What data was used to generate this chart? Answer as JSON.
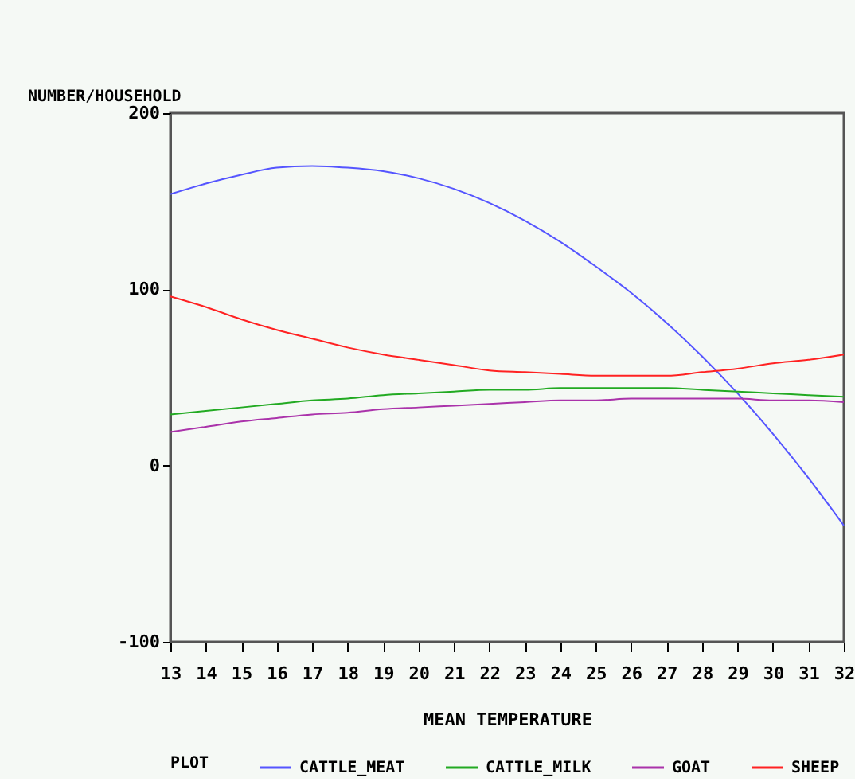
{
  "chart_data": {
    "type": "line",
    "xlabel": "MEAN TEMPERATURE",
    "ylabel": "NUMBER/HOUSEHOLD",
    "legend_title": "PLOT",
    "legend": "bottom",
    "grid": false,
    "x": [
      13,
      14,
      15,
      16,
      17,
      18,
      19,
      20,
      21,
      22,
      23,
      24,
      25,
      26,
      27,
      28,
      29,
      30,
      31,
      32
    ],
    "xlim": [
      13,
      32
    ],
    "xticks": [
      13,
      14,
      15,
      16,
      17,
      18,
      19,
      20,
      21,
      22,
      23,
      24,
      25,
      26,
      27,
      28,
      29,
      30,
      31,
      32
    ],
    "ylim": [
      -100,
      200
    ],
    "yticks": [
      -100,
      0,
      100,
      200
    ],
    "series": [
      {
        "name": "CATTLE_MEAT",
        "color": "#5555ff",
        "values": [
          154,
          160,
          165,
          169,
          170,
          169,
          167,
          163,
          157,
          149,
          139,
          127,
          113,
          98,
          81,
          62,
          41,
          18,
          -7,
          -34
        ]
      },
      {
        "name": "CATTLE_MILK",
        "color": "#22aa22",
        "values": [
          29,
          31,
          33,
          35,
          37,
          38,
          40,
          41,
          42,
          43,
          43,
          44,
          44,
          44,
          44,
          43,
          42,
          41,
          40,
          39
        ]
      },
      {
        "name": "GOAT",
        "color": "#aa33aa",
        "values": [
          19,
          22,
          25,
          27,
          29,
          30,
          32,
          33,
          34,
          35,
          36,
          37,
          37,
          38,
          38,
          38,
          38,
          37,
          37,
          36
        ]
      },
      {
        "name": "SHEEP",
        "color": "#ff2222",
        "values": [
          96,
          90,
          83,
          77,
          72,
          67,
          63,
          60,
          57,
          54,
          53,
          52,
          51,
          51,
          51,
          53,
          55,
          58,
          60,
          63
        ]
      }
    ]
  }
}
